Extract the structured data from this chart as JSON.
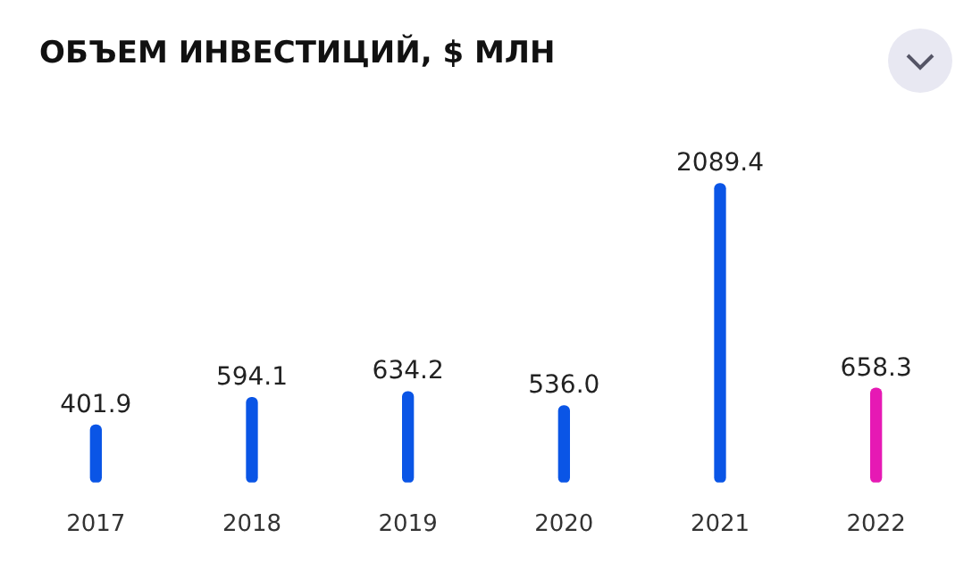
{
  "chart_data": {
    "type": "bar",
    "title": "ОБЪЕМ ИНВЕСТИЦИЙ, $ МЛН",
    "categories": [
      "2017",
      "2018",
      "2019",
      "2020",
      "2021",
      "2022"
    ],
    "values": [
      401.9,
      594.1,
      634.2,
      536.0,
      2089.4,
      658.3
    ],
    "value_labels": [
      "401.9",
      "594.1",
      "634.2",
      "536.0",
      "2089.4",
      "658.3"
    ],
    "colors": [
      "#0a55e6",
      "#0a55e6",
      "#0a55e6",
      "#0a55e6",
      "#0a55e6",
      "#e619b4"
    ],
    "grid": false,
    "legend": false
  }
}
